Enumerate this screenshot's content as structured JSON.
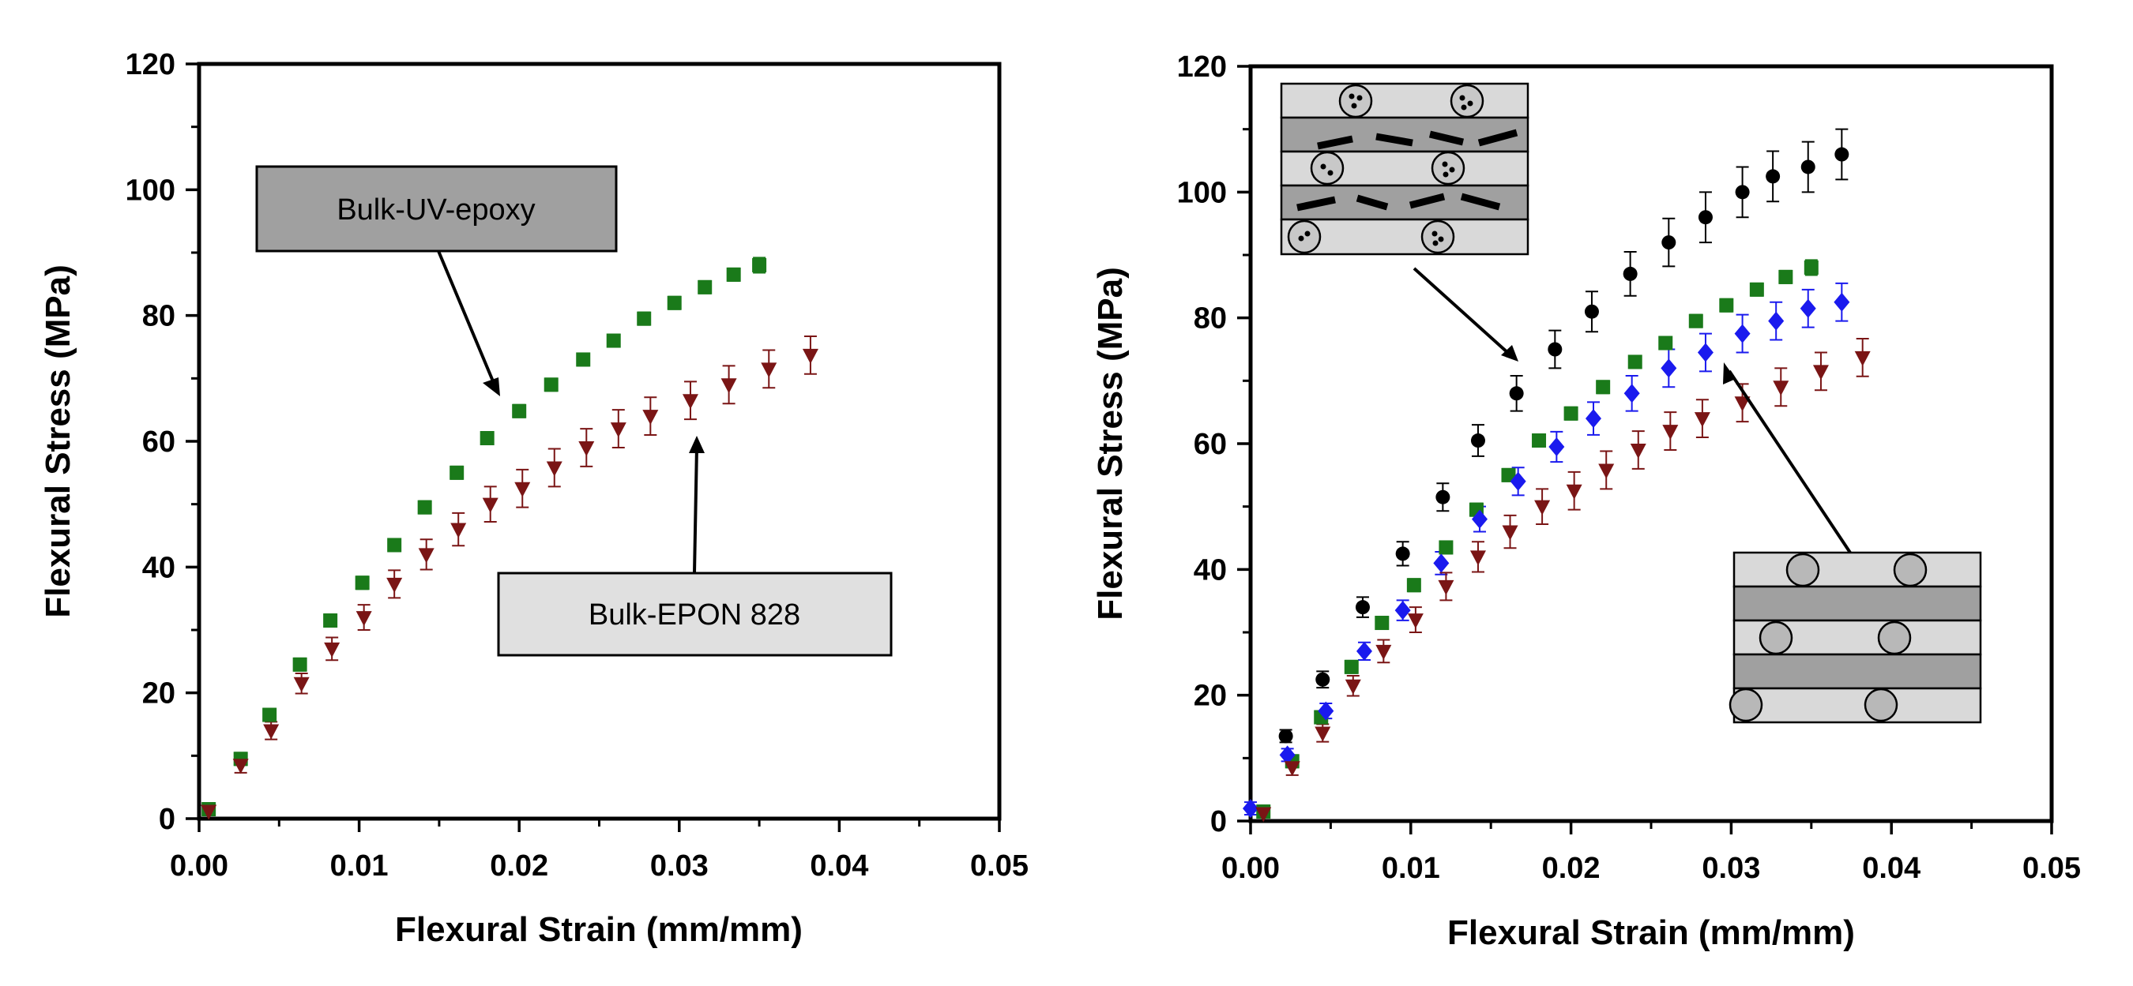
{
  "colors": {
    "uv_epoxy": "#1a7a1a",
    "epon": "#7a1515",
    "black_series": "#000000",
    "blue_series": "#1a1aee",
    "callout_dark": "#a0a0a0",
    "callout_light": "#e0e0e0"
  },
  "chart_data": [
    {
      "type": "scatter",
      "xlabel": "Flexural Strain (mm/mm)",
      "ylabel": "Flexural Stress (MPa)",
      "xlim": [
        0,
        0.05
      ],
      "ylim": [
        0,
        120
      ],
      "xticks": [
        "0.00",
        "0.01",
        "0.02",
        "0.03",
        "0.04",
        "0.05"
      ],
      "yticks": [
        "0",
        "20",
        "40",
        "60",
        "80",
        "100",
        "120"
      ],
      "annotations": [
        {
          "text": "Bulk-UV-epoxy",
          "target_series": "uv_epoxy"
        },
        {
          "text": "Bulk-EPON 828",
          "target_series": "epon"
        }
      ],
      "series": [
        {
          "key": "uv_epoxy",
          "marker": "square",
          "x": [
            0.0006,
            0.0026,
            0.0044,
            0.0063,
            0.0082,
            0.0102,
            0.0122,
            0.0141,
            0.0161,
            0.018,
            0.02,
            0.022,
            0.024,
            0.0259,
            0.0278,
            0.0297,
            0.0316,
            0.0334,
            0.035
          ],
          "y": [
            1.5,
            9.5,
            16.5,
            24.5,
            31.5,
            37.5,
            43.5,
            49.5,
            55,
            60.5,
            64.8,
            69,
            73,
            76,
            79.5,
            82,
            84.5,
            86.5,
            88
          ],
          "err": [
            1,
            1,
            1,
            1,
            1,
            1,
            1,
            1,
            1,
            1,
            1,
            1,
            1,
            1,
            1,
            1,
            1,
            1,
            1.2
          ]
        },
        {
          "key": "epon",
          "marker": "triangle-down",
          "x": [
            0.0006,
            0.0026,
            0.0045,
            0.0064,
            0.0083,
            0.0103,
            0.0122,
            0.0142,
            0.0162,
            0.0182,
            0.0202,
            0.0222,
            0.0242,
            0.0262,
            0.0282,
            0.0307,
            0.0331,
            0.0356,
            0.0382
          ],
          "y": [
            1.2,
            8.5,
            14,
            21.5,
            27,
            32,
            37.3,
            42,
            46,
            50,
            52.5,
            55.8,
            59,
            62,
            64,
            66.5,
            69,
            71.5,
            73.7
          ],
          "err": [
            0.6,
            1.2,
            1.4,
            1.6,
            1.8,
            2,
            2.2,
            2.4,
            2.6,
            2.8,
            3,
            3,
            3,
            3,
            3,
            3,
            3,
            3,
            3
          ]
        }
      ]
    },
    {
      "type": "scatter",
      "xlabel": "Flexural Strain (mm/mm)",
      "ylabel": "Flexural Stress (MPa)",
      "xlim": [
        0,
        0.05
      ],
      "ylim": [
        0,
        120
      ],
      "xticks": [
        "0.00",
        "0.01",
        "0.02",
        "0.03",
        "0.04",
        "0.05"
      ],
      "yticks": [
        "0",
        "20",
        "40",
        "60",
        "80",
        "100",
        "120"
      ],
      "series": [
        {
          "key": "black_series",
          "marker": "circle",
          "x": [
            0.0022,
            0.0045,
            0.007,
            0.0095,
            0.012,
            0.0142,
            0.0166,
            0.019,
            0.0213,
            0.0237,
            0.0261,
            0.0284,
            0.0307,
            0.0326,
            0.0348,
            0.0369
          ],
          "y": [
            13.5,
            22.5,
            34,
            42.5,
            51.5,
            60.5,
            68,
            75,
            81,
            87,
            92,
            96,
            100,
            102.5,
            104,
            106
          ],
          "err": [
            1,
            1.3,
            1.6,
            1.9,
            2.2,
            2.5,
            2.8,
            3,
            3.2,
            3.5,
            3.8,
            4,
            4,
            4,
            4,
            4
          ]
        },
        {
          "key": "uv_epoxy",
          "marker": "square",
          "x": [
            0.0008,
            0.0026,
            0.0044,
            0.0063,
            0.0082,
            0.0102,
            0.0122,
            0.0141,
            0.0161,
            0.018,
            0.02,
            0.022,
            0.024,
            0.0259,
            0.0278,
            0.0297,
            0.0316,
            0.0334,
            0.035
          ],
          "y": [
            1.5,
            9.5,
            16.5,
            24.5,
            31.5,
            37.5,
            43.5,
            49.5,
            55,
            60.5,
            64.8,
            69,
            73,
            76,
            79.5,
            82,
            84.5,
            86.5,
            88
          ],
          "err": [
            1,
            1,
            1,
            1,
            1,
            1,
            1,
            1,
            1,
            1,
            1,
            1,
            1,
            1,
            1,
            1,
            1,
            1,
            1.2
          ]
        },
        {
          "key": "blue_series",
          "marker": "diamond",
          "x": [
            0,
            0.0023,
            0.0047,
            0.0071,
            0.0095,
            0.0119,
            0.0143,
            0.0167,
            0.0191,
            0.0214,
            0.0238,
            0.0261,
            0.0284,
            0.0307,
            0.0328,
            0.0348,
            0.0369
          ],
          "y": [
            2,
            10.5,
            17.5,
            27,
            33.5,
            41,
            48,
            54,
            59.5,
            64,
            68,
            72,
            74.5,
            77.5,
            79.5,
            81.5,
            82.5
          ],
          "err": [
            1,
            1,
            1.2,
            1.4,
            1.6,
            1.8,
            2,
            2.2,
            2.4,
            2.6,
            2.8,
            3,
            3,
            3,
            3,
            3,
            3
          ]
        },
        {
          "key": "epon",
          "marker": "triangle-down",
          "x": [
            0.0008,
            0.0026,
            0.0045,
            0.0064,
            0.0083,
            0.0103,
            0.0122,
            0.0142,
            0.0162,
            0.0182,
            0.0202,
            0.0222,
            0.0242,
            0.0262,
            0.0282,
            0.0307,
            0.0331,
            0.0356,
            0.0382
          ],
          "y": [
            1.2,
            8.5,
            14,
            21.5,
            27,
            32,
            37.3,
            42,
            46,
            50,
            52.5,
            55.8,
            59,
            62,
            64,
            66.5,
            69,
            71.5,
            73.7
          ],
          "err": [
            0.6,
            1.2,
            1.4,
            1.6,
            1.8,
            2,
            2.2,
            2.4,
            2.6,
            2.8,
            3,
            3,
            3,
            3,
            3,
            3,
            3,
            3,
            3
          ]
        }
      ]
    }
  ]
}
